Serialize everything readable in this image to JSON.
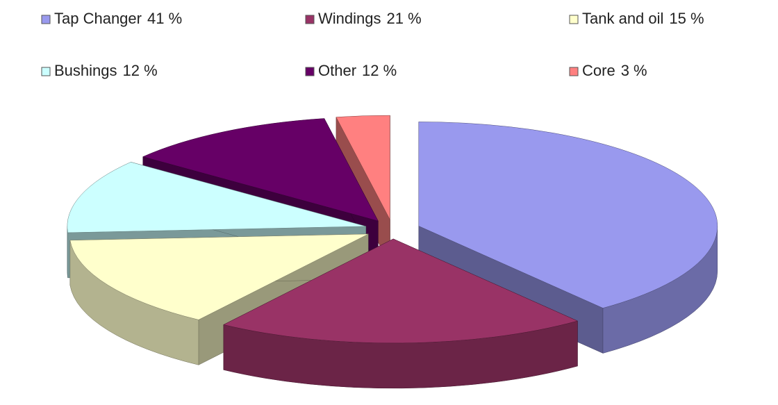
{
  "chart_data": {
    "type": "pie3d",
    "categories": [
      "Tap Changer",
      "Windings",
      "Tank and oil",
      "Bushings",
      "Other",
      "Core"
    ],
    "values": [
      41,
      21,
      15,
      12,
      12,
      3
    ],
    "value_labels": [
      "41 %",
      "21 %",
      "15 %",
      "12 %",
      "12 %",
      "3 %"
    ],
    "colors": [
      "#9999ee",
      "#993366",
      "#ffffcc",
      "#ccffff",
      "#660066",
      "#ff8080"
    ],
    "legend": "top"
  }
}
